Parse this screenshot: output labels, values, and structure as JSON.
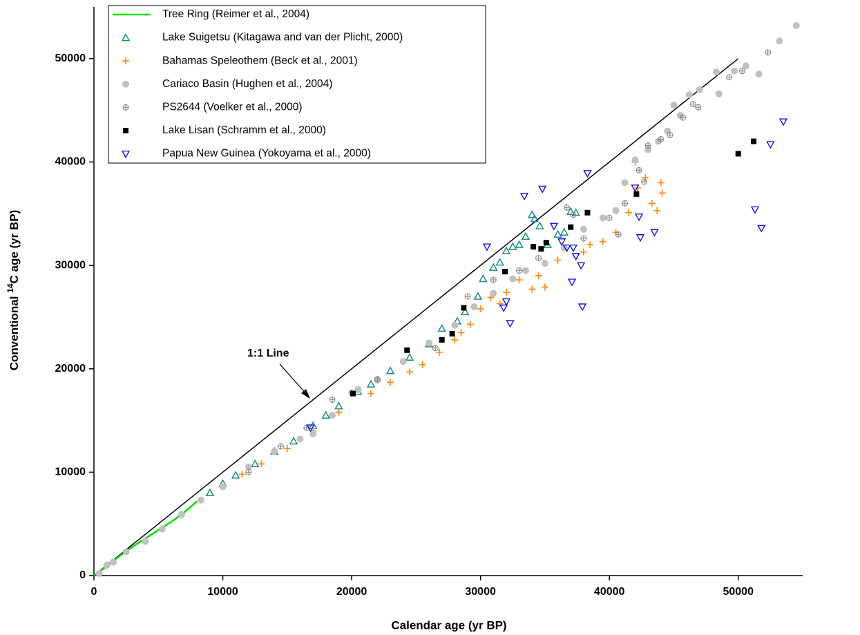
{
  "chart_data": {
    "type": "scatter",
    "xlabel": "Calendar age (yr BP)",
    "ylabel": {
      "pre": "Conventional ",
      "sup": "14",
      "post": "C age (yr BP)"
    },
    "xlim": [
      0,
      55000
    ],
    "ylim": [
      0,
      55000
    ],
    "xticks": [
      0,
      10000,
      20000,
      30000,
      40000,
      50000
    ],
    "yticks": [
      0,
      10000,
      20000,
      30000,
      40000,
      50000
    ],
    "reference_line": {
      "label": "1:1 Line",
      "x": [
        0,
        50000
      ],
      "y": [
        0,
        50000
      ]
    },
    "legend": "upper left",
    "series": [
      {
        "name": "Tree Ring (Reimer et al., 2004)",
        "color": "#00e000",
        "marker": "line",
        "x": [
          0,
          1000,
          2000,
          3000,
          4000,
          5000,
          6000,
          7000,
          8000
        ],
        "y": [
          0,
          900,
          1900,
          2800,
          3600,
          4400,
          5200,
          6100,
          7200
        ]
      },
      {
        "name": "Lake Suigetsu (Kitagawa and van der Plicht, 2000)",
        "color": "#1a8c8c",
        "marker": "triangle-up",
        "x": [
          9000,
          10000,
          11000,
          12500,
          14000,
          15500,
          17000,
          18000,
          19000,
          20500,
          21500,
          23000,
          24500,
          26000,
          27000,
          28200,
          28800,
          29800,
          30200,
          31000,
          31500,
          32000,
          32500,
          33000,
          33500,
          34000,
          34200,
          34600,
          35200,
          36000,
          36500,
          37000,
          37400
        ],
        "y": [
          8000,
          8900,
          9700,
          10800,
          12000,
          13000,
          14500,
          15500,
          16400,
          17800,
          18500,
          19800,
          21100,
          22400,
          23900,
          24600,
          25500,
          27000,
          28700,
          29800,
          30300,
          31400,
          31800,
          32000,
          32800,
          34900,
          34500,
          33800,
          32000,
          33000,
          33200,
          35200,
          35100
        ]
      },
      {
        "name": "Bahamas Speleothem (Beck et al., 2001)",
        "color": "#ff8c1a",
        "marker": "plus",
        "x": [
          11500,
          13000,
          15000,
          17000,
          19000,
          21500,
          23000,
          24500,
          25500,
          26800,
          28000,
          28500,
          29200,
          30000,
          30800,
          31500,
          32000,
          33000,
          34000,
          34500,
          35000,
          36000,
          38000,
          38500,
          39500,
          40500,
          41500,
          42000,
          42200,
          42800,
          43300,
          43700,
          44000,
          44100
        ],
        "y": [
          9800,
          10800,
          12300,
          14000,
          15800,
          17600,
          18700,
          19700,
          20400,
          21600,
          22800,
          23500,
          24300,
          25800,
          26900,
          26300,
          27400,
          28600,
          27700,
          29000,
          27900,
          30500,
          31300,
          32000,
          32300,
          33200,
          35100,
          40000,
          37500,
          38500,
          36000,
          35300,
          38000,
          37000
        ]
      },
      {
        "name": "Cariaco Basin (Hughen et al., 2004)",
        "color": "#c0c0c0",
        "marker": "circle",
        "x": [
          400,
          1000,
          1500,
          2500,
          4000,
          5300,
          6800,
          8300,
          10000,
          12000,
          14000,
          16000,
          17000,
          18500,
          20500,
          22000,
          24000,
          26000,
          28000,
          29500,
          31000,
          32500,
          33500,
          35000,
          36500,
          38000,
          39500,
          40500,
          41200,
          42000,
          43000,
          43800,
          44500,
          45000,
          45500,
          46200,
          47000,
          48300,
          48500,
          49700,
          50600,
          51600,
          53200,
          54500
        ],
        "y": [
          200,
          1000,
          1300,
          2300,
          3300,
          4500,
          5900,
          7300,
          8600,
          10500,
          12000,
          13200,
          13700,
          15500,
          18000,
          18900,
          20700,
          22500,
          24200,
          26000,
          27300,
          28700,
          29500,
          30200,
          31700,
          33500,
          34600,
          35300,
          38000,
          40200,
          41200,
          42000,
          43000,
          45500,
          44500,
          46500,
          47000,
          48700,
          46600,
          48800,
          49300,
          48500,
          51700,
          53200
        ]
      },
      {
        "name": "PS2644 (Voelker et al., 2000)",
        "color": "#808080",
        "marker": "circle-plus",
        "x": [
          12000,
          14500,
          16500,
          18500,
          20000,
          22000,
          26500,
          29000,
          31000,
          33000,
          34500,
          36700,
          37200,
          38000,
          40000,
          40700,
          41200,
          42300,
          42700,
          43000,
          44000,
          44700,
          45700,
          46500,
          46900,
          49300,
          50300,
          52300
        ],
        "y": [
          10000,
          12500,
          14300,
          17000,
          17700,
          19000,
          22000,
          27000,
          28600,
          29500,
          30700,
          35600,
          34900,
          32600,
          34600,
          33000,
          36000,
          39200,
          38100,
          41600,
          42200,
          42600,
          44300,
          45600,
          45300,
          48200,
          48800,
          50600
        ]
      },
      {
        "name": "Lake Lisan (Schramm et al., 2000)",
        "color": "#000000",
        "marker": "square",
        "x": [
          20100,
          24300,
          27000,
          27800,
          28700,
          31900,
          34100,
          34700,
          35100,
          37000,
          38300,
          42100,
          50000,
          51200
        ],
        "y": [
          17600,
          21800,
          22800,
          23400,
          25900,
          29400,
          31800,
          31600,
          32200,
          33700,
          35100,
          36900,
          40800,
          42000
        ]
      },
      {
        "name": "Papua New Guinea (Yokoyama et al., 2000)",
        "color": "#0000e0",
        "marker": "triangle-down",
        "x": [
          16800,
          30500,
          31800,
          32000,
          32300,
          33400,
          34800,
          35700,
          36300,
          36700,
          37100,
          37200,
          37400,
          37800,
          37900,
          38300,
          42000,
          42300,
          42400,
          43500,
          51300,
          51800,
          52500,
          53500
        ],
        "y": [
          14300,
          31800,
          25900,
          26500,
          24400,
          36700,
          37400,
          33800,
          32300,
          31700,
          28400,
          31700,
          30900,
          30000,
          26000,
          38900,
          37500,
          34700,
          32700,
          33200,
          35400,
          33600,
          41700,
          43900
        ]
      }
    ]
  }
}
